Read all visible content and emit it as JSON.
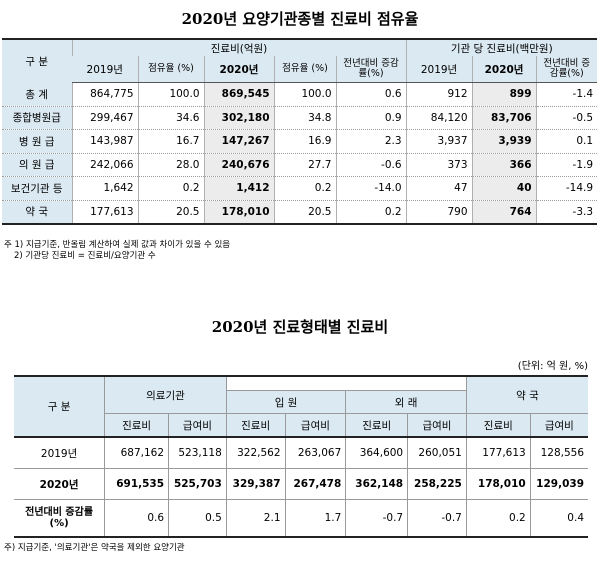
{
  "title1": "2020년 요양기관종별 진료비 점유율",
  "t1": {
    "col_group": "구   분",
    "grp1": "진료비(억원)",
    "grp2": "기관 당 진료비(백만원)",
    "h": [
      "2019년",
      "점유율 (%)",
      "2020년",
      "점유율 (%)",
      "전년대비 증감률(%)",
      "2019년",
      "2020년",
      "전년대비 증감률(%)"
    ],
    "rows": [
      {
        "label": "총    계",
        "v": [
          "864,775",
          "100.0",
          "869,545",
          "100.0",
          "0.6",
          "912",
          "899",
          "-1.4"
        ]
      },
      {
        "label": "종합병원급",
        "v": [
          "299,467",
          "34.6",
          "302,180",
          "34.8",
          "0.9",
          "84,120",
          "83,706",
          "-0.5"
        ]
      },
      {
        "label": "병 원 급",
        "v": [
          "143,987",
          "16.7",
          "147,267",
          "16.9",
          "2.3",
          "3,937",
          "3,939",
          "0.1"
        ]
      },
      {
        "label": "의 원 급",
        "v": [
          "242,066",
          "28.0",
          "240,676",
          "27.7",
          "-0.6",
          "373",
          "366",
          "-1.9"
        ]
      },
      {
        "label": "보건기관 등",
        "v": [
          "1,642",
          "0.2",
          "1,412",
          "0.2",
          "-14.0",
          "47",
          "40",
          "-14.9"
        ]
      },
      {
        "label": "약    국",
        "v": [
          "177,613",
          "20.5",
          "178,010",
          "20.5",
          "0.2",
          "790",
          "764",
          "-3.3"
        ]
      }
    ],
    "note1": "주 1) 지급기준, 반올림 계산하여 실제 값과 차이가 있을 수 있음",
    "note2": "2) 기관당 진료비 = 진료비/요양기관 수"
  },
  "title2": "2020년 진료형태별 진료비",
  "unit": "(단위: 억 원, %)",
  "t2": {
    "col_group": "구  분",
    "g_med": "의료기관",
    "g_in": "입 원",
    "g_out": "외 래",
    "g_pharm": "약 국",
    "h": [
      "진료비",
      "급여비",
      "진료비",
      "급여비",
      "진료비",
      "급여비",
      "진료비",
      "급여비"
    ],
    "rows": [
      {
        "label": "2019년",
        "v": [
          "687,162",
          "523,118",
          "322,562",
          "263,067",
          "364,600",
          "260,051",
          "177,613",
          "128,556"
        ]
      },
      {
        "label": "2020년",
        "v": [
          "691,535",
          "525,703",
          "329,387",
          "267,478",
          "362,148",
          "258,225",
          "178,010",
          "129,039"
        ]
      },
      {
        "label": "전년대비 증감률(%)",
        "v": [
          "0.6",
          "0.5",
          "2.1",
          "1.7",
          "-0.7",
          "-0.7",
          "0.2",
          "0.4"
        ]
      }
    ],
    "note": "주) 지급기준, '의료기관'은 약국을 제외한 요양기관"
  }
}
